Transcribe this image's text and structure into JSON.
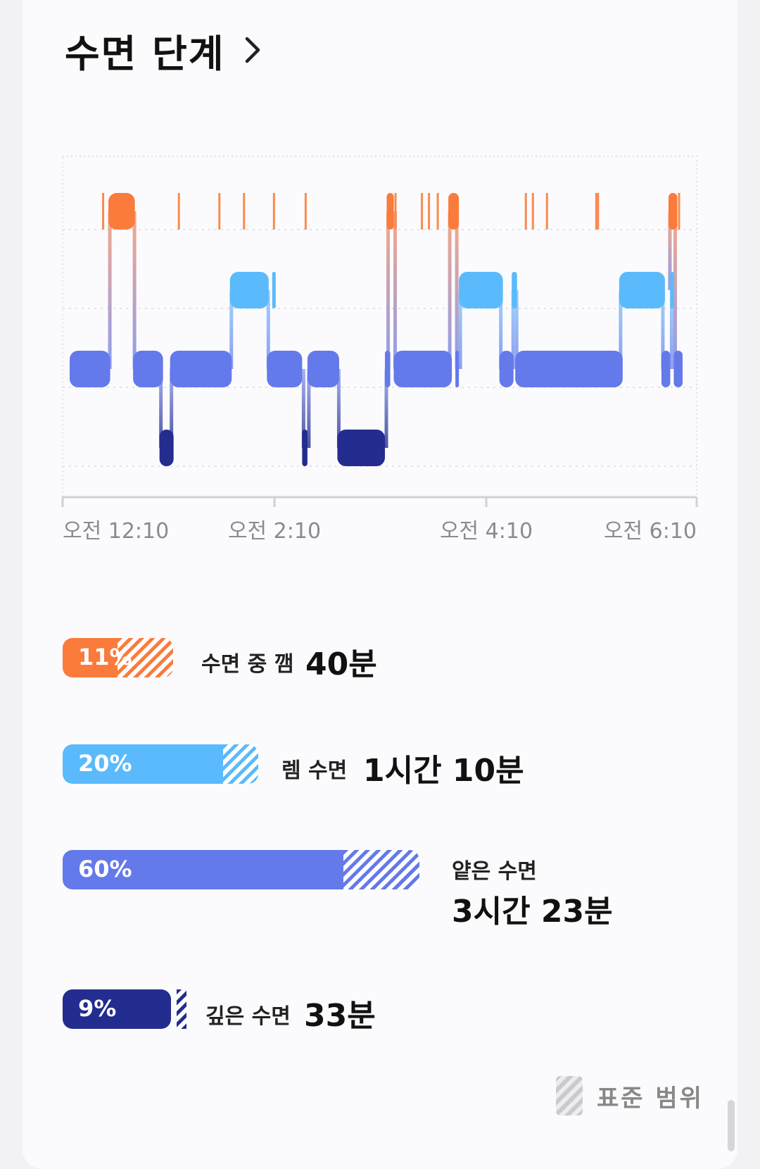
{
  "header": {
    "title": "수면 단계"
  },
  "chart_data": {
    "type": "hypnogram",
    "stages": [
      "깸",
      "렘 수면",
      "얕은 수면",
      "깊은 수면"
    ],
    "x_ticks": [
      "오전 12:10",
      "오전 2:10",
      "오전 4:10",
      "오전 6:10"
    ],
    "x_range_minutes": [
      0,
      360
    ],
    "segments": [
      {
        "stage": "light",
        "start": 4,
        "end": 27
      },
      {
        "stage": "awake",
        "start": 26,
        "end": 41
      },
      {
        "stage": "light",
        "start": 40,
        "end": 57
      },
      {
        "stage": "deep",
        "start": 55,
        "end": 63
      },
      {
        "stage": "light",
        "start": 61,
        "end": 96
      },
      {
        "stage": "rem",
        "start": 95,
        "end": 117
      },
      {
        "stage": "rem",
        "start": 119,
        "end": 121
      },
      {
        "stage": "light",
        "start": 116,
        "end": 136
      },
      {
        "stage": "deep",
        "start": 136,
        "end": 139
      },
      {
        "stage": "light",
        "start": 139,
        "end": 157
      },
      {
        "stage": "deep",
        "start": 156,
        "end": 183
      },
      {
        "stage": "light",
        "start": 183,
        "end": 186
      },
      {
        "stage": "awake",
        "start": 184,
        "end": 188
      },
      {
        "stage": "light",
        "start": 188,
        "end": 221
      },
      {
        "stage": "awake",
        "start": 219,
        "end": 225
      },
      {
        "stage": "light",
        "start": 223,
        "end": 225
      },
      {
        "stage": "rem",
        "start": 225,
        "end": 250
      },
      {
        "stage": "light",
        "start": 248,
        "end": 256
      },
      {
        "stage": "rem",
        "start": 255,
        "end": 258
      },
      {
        "stage": "light",
        "start": 257,
        "end": 318
      },
      {
        "stage": "rem",
        "start": 316,
        "end": 342
      },
      {
        "stage": "light",
        "start": 340,
        "end": 345
      },
      {
        "stage": "rem",
        "start": 345,
        "end": 347
      },
      {
        "stage": "awake",
        "start": 344,
        "end": 349
      },
      {
        "stage": "light",
        "start": 347,
        "end": 352
      }
    ],
    "brief_awakenings": [
      23,
      66,
      89,
      103,
      120,
      138,
      189,
      204,
      208,
      213,
      263,
      267,
      275,
      303,
      304,
      350
    ]
  },
  "legend": {
    "awake": {
      "pct_text": "11%",
      "label": "수면 중 깸",
      "value": "40분",
      "pct": 11,
      "range_start": 0.49,
      "range_end": 0.98,
      "color": "#fa7b3c"
    },
    "rem": {
      "pct_text": "20%",
      "label": "렘 수면",
      "value": "1시간 10분",
      "pct": 20,
      "range_start": 0.82,
      "range_end": 1.0,
      "color": "#5bbafb"
    },
    "light": {
      "pct_text": "60%",
      "label": "얕은 수면",
      "value": "3시간 23분",
      "pct": 60,
      "range_start": 0.78,
      "range_end": 0.99,
      "color": "#6479ea"
    },
    "deep": {
      "pct_text": "9%",
      "label": "깊은 수면",
      "value": "33분",
      "pct": 9,
      "range_start": 0.94,
      "range_end": 1.0,
      "color": "#232c8f"
    }
  },
  "standard": {
    "label": "표준 범위"
  }
}
